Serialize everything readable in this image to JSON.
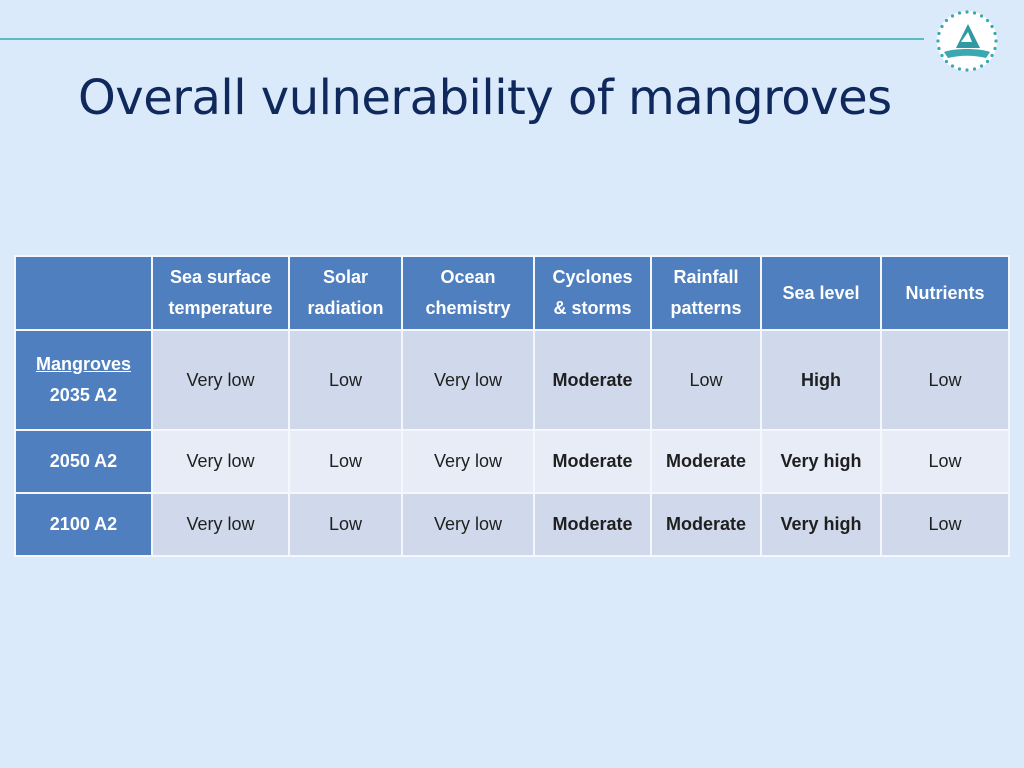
{
  "slide": {
    "title": "Overall vulnerability of mangroves",
    "logo_icon": "spc-sail-logo-icon",
    "accent_line_color": "#5bbcc0",
    "background_color": "#dbeafa"
  },
  "table": {
    "corner": "",
    "headers": [
      {
        "line1": "Sea surface",
        "line2": "temperature"
      },
      {
        "line1": "Solar",
        "line2": "radiation"
      },
      {
        "line1": "Ocean",
        "line2": "chemistry"
      },
      {
        "line1": "Cyclones",
        "line2": "& storms"
      },
      {
        "line1": "Rainfall",
        "line2": "patterns"
      },
      {
        "line1": "Sea level",
        "line2": ""
      },
      {
        "line1": "Nutrients",
        "line2": ""
      }
    ],
    "rows": [
      {
        "label_top": "Mangroves",
        "label_bottom": "2035 A2",
        "cells": [
          "Very low",
          "Low",
          "Very low",
          "Moderate",
          "Low",
          "High",
          "Low"
        ]
      },
      {
        "label_top": "",
        "label_bottom": "2050 A2",
        "cells": [
          "Very low",
          "Low",
          "Very low",
          "Moderate",
          "Moderate",
          "Very high",
          "Low"
        ]
      },
      {
        "label_top": "",
        "label_bottom": "2100 A2",
        "cells": [
          "Very low",
          "Low",
          "Very low",
          "Moderate",
          "Moderate",
          "Very high",
          "Low"
        ]
      }
    ],
    "level_colors": {
      "Moderate": "#f0944a",
      "High": "#e21a1a",
      "Very high": "#e21a1a"
    },
    "header_color": "#4f7fbf"
  }
}
